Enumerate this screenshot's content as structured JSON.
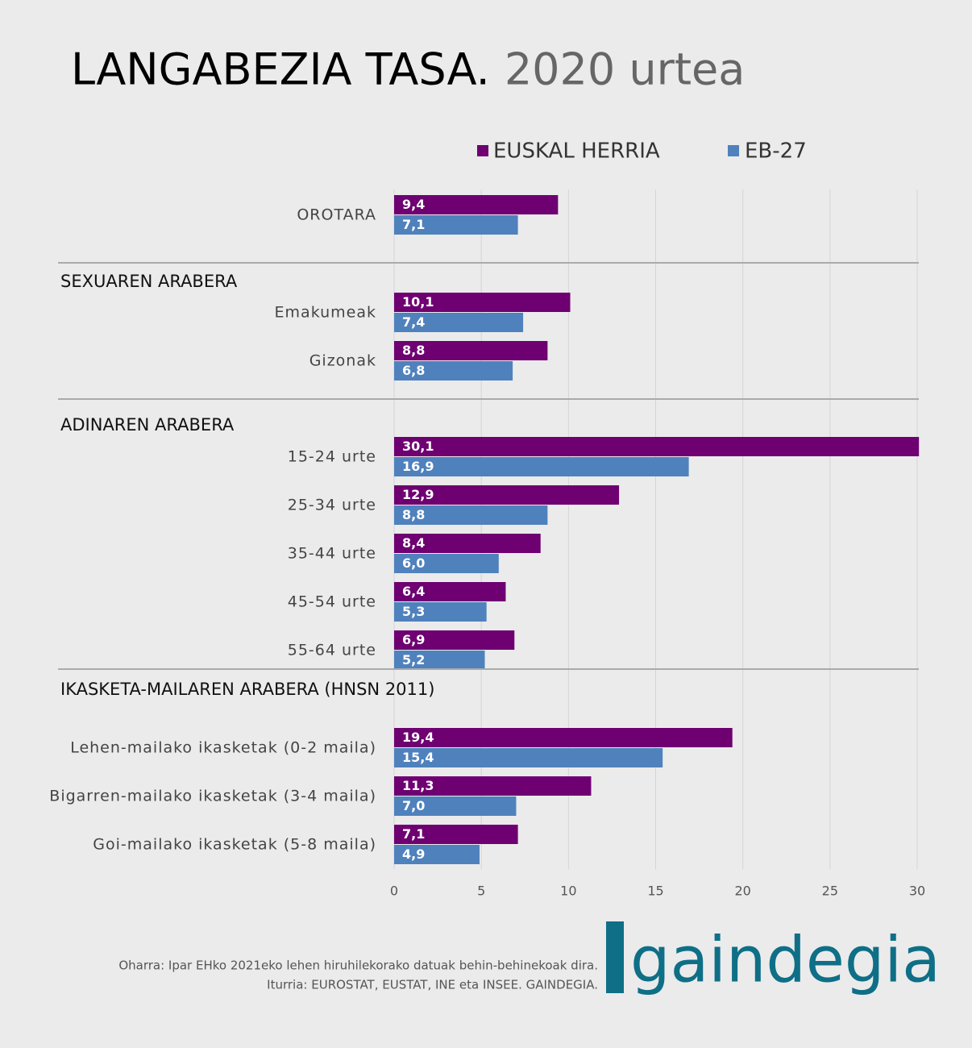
{
  "chart_data": {
    "type": "grouped-bar-horizontal",
    "title": "LANGABEZIA TASA.",
    "subtitle": "2020 urtea",
    "series": [
      {
        "name": "EUSKAL HERRIA",
        "color": "#6e0071"
      },
      {
        "name": "EB-27",
        "color": "#4f81bd"
      }
    ],
    "groups": [
      {
        "categories": [
          "OROTARA"
        ],
        "values": [
          [
            9.4
          ],
          [
            7.1
          ]
        ],
        "value_labels": [
          [
            "9,4"
          ],
          [
            "7,1"
          ]
        ]
      },
      {
        "title": "SEXUAREN ARABERA",
        "categories": [
          "Emakumeak",
          "Gizonak"
        ],
        "values": [
          [
            10.1,
            8.8
          ],
          [
            7.4,
            6.8
          ]
        ],
        "value_labels": [
          [
            "10,1",
            "8,8"
          ],
          [
            "7,4",
            "6,8"
          ]
        ]
      },
      {
        "title": "ADINAREN ARABERA",
        "categories": [
          "15-24 urte",
          "25-34 urte",
          "35-44 urte",
          "45-54 urte",
          "55-64 urte"
        ],
        "values": [
          [
            30.1,
            12.9,
            8.4,
            6.4,
            6.9
          ],
          [
            16.9,
            8.8,
            6.0,
            5.3,
            5.2
          ]
        ],
        "value_labels": [
          [
            "30,1",
            "12,9",
            "8,4",
            "6,4",
            "6,9"
          ],
          [
            "16,9",
            "8,8",
            "6,0",
            "5,3",
            "5,2"
          ]
        ]
      },
      {
        "title": "IKASKETA-MAILAREN ARABERA (HNSN 2011)",
        "categories": [
          "Lehen-mailako ikasketak (0-2 maila)",
          "Bigarren-mailako ikasketak (3-4 maila)",
          "Goi-mailako ikasketak (5-8 maila)"
        ],
        "values": [
          [
            19.4,
            11.3,
            7.1
          ],
          [
            15.4,
            7.0,
            4.9
          ]
        ],
        "value_labels": [
          [
            "19,4",
            "11,3",
            "7,1"
          ],
          [
            "15,4",
            "7,0",
            "4,9"
          ]
        ]
      }
    ],
    "xlim": [
      0,
      30
    ],
    "xticks": [
      0,
      5,
      10,
      15,
      20,
      25,
      30
    ],
    "grid": true,
    "legend": "top",
    "note": "Oharra: Ipar EHko 2021eko lehen hiruhilekorako datuak behin-behinekoak dira.",
    "source": "Iturria: EUROSTAT, EUSTAT, INE eta INSEE. GAINDEGIA.",
    "logo": "gaindegia"
  }
}
